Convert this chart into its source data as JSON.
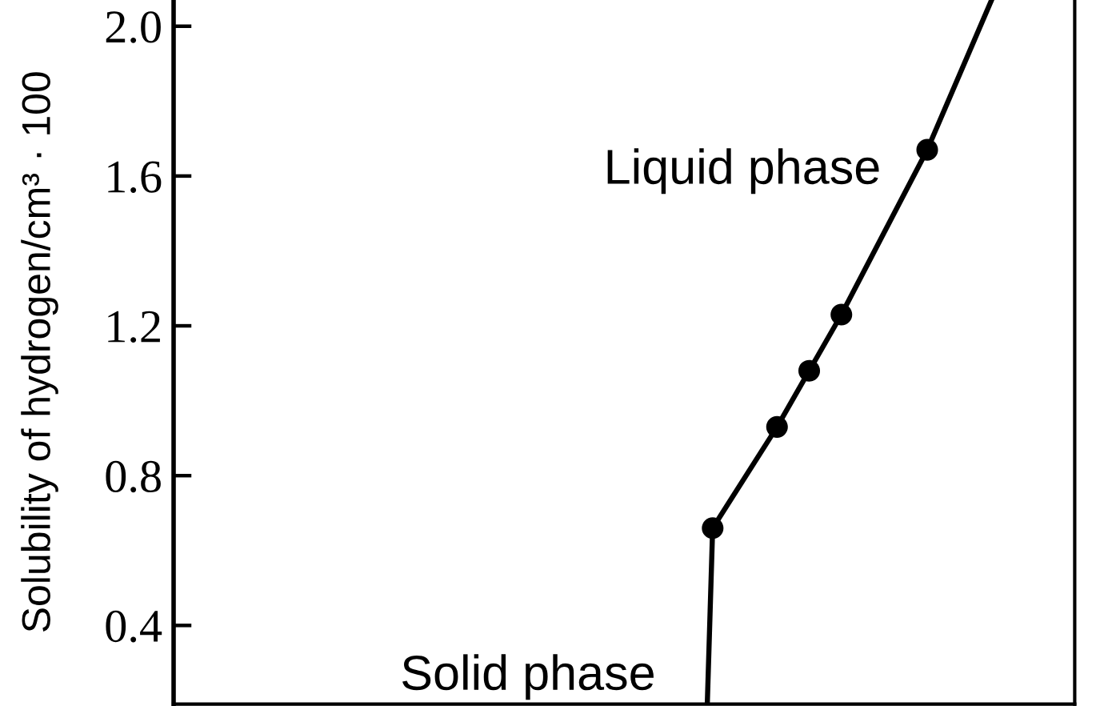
{
  "chart_data": {
    "type": "line",
    "ylabel": "Solubility of hydrogen/cm³ · 100",
    "annotations": [
      "Liquid phase",
      "Solid phase"
    ],
    "categories": [
      null,
      null,
      null,
      null,
      null,
      null,
      null,
      null,
      null,
      null,
      null,
      null,
      null,
      null,
      null,
      null,
      null,
      null,
      null,
      null,
      null,
      null,
      null,
      null,
      null,
      null,
      null,
      null,
      null,
      null,
      null,
      null,
      null,
      null,
      null,
      null,
      null,
      null,
      null,
      null,
      null,
      null,
      null,
      null,
      null,
      null,
      null,
      null,
      null,
      null,
      null,
      null,
      null,
      null,
      null,
      null,
      null,
      null,
      null,
      null,
      null,
      null,
      null,
      null,
      null,
      null,
      null,
      null,
      null,
      null,
      null,
      null,
      null,
      null,
      null,
      null,
      null,
      null,
      null,
      null,
      null,
      null,
      null,
      null,
      null,
      null,
      null,
      null,
      null,
      null,
      null,
      null,
      null,
      null,
      null,
      null,
      null,
      null,
      null,
      null,
      null,
      null,
      null,
      null,
      null,
      null,
      null,
      null,
      null,
      null,
      null,
      null,
      null,
      null,
      null,
      null,
      null,
      null,
      null,
      null,
      null,
      null,
      null,
      null,
      null,
      null,
      null,
      null,
      null,
      null,
      null,
      null,
      null,
      null,
      null,
      null,
      null,
      null,
      null,
      null,
      null,
      null,
      null,
      null,
      null,
      null,
      null,
      null,
      null,
      null,
      null,
      null,
      null,
      null,
      null,
      null,
      null,
      null,
      null,
      null,
      null,
      null,
      null,
      null,
      null,
      null,
      null,
      null
    ],
    "ylim": [
      0.19,
      2.07
    ],
    "yticks": [
      0.4,
      0.8,
      1.2,
      1.6,
      {
        "value": 2,
        "label": "2.0"
      }
    ],
    "tick_labels": "y",
    "series": [
      {
        "color": "#000000",
        "marker": "none",
        "values": [
          null,
          null,
          null,
          null,
          null,
          null,
          null,
          null,
          null,
          null,
          null,
          null,
          null,
          null,
          null,
          null,
          null,
          null,
          null,
          null,
          null,
          null,
          null,
          null,
          null,
          null,
          null,
          null,
          null,
          null,
          null,
          null,
          null,
          null,
          null,
          null,
          null,
          null,
          null,
          null,
          null,
          null,
          null,
          null,
          null,
          null,
          null,
          null,
          null,
          null,
          null,
          null,
          null,
          null,
          null,
          null,
          null,
          null,
          null,
          null,
          null,
          null,
          null,
          null,
          null,
          null,
          null,
          null,
          null,
          null,
          null,
          null,
          null,
          null,
          null,
          null,
          null,
          null,
          null,
          null,
          null,
          null,
          null,
          null,
          null,
          null,
          null,
          null,
          null,
          null,
          null,
          null,
          null,
          null,
          null,
          null,
          null,
          null,
          null,
          0.19,
          0.66,
          null,
          null,
          null,
          null,
          null,
          null,
          null,
          null,
          null,
          null,
          null,
          0.93,
          null,
          null,
          null,
          null,
          null,
          1.08,
          null,
          null,
          null,
          null,
          null,
          1.23,
          null,
          null,
          null,
          null,
          null,
          null,
          null,
          null,
          null,
          null,
          null,
          null,
          null,
          null,
          null,
          1.67,
          null,
          null,
          null,
          null,
          null,
          null,
          null,
          null,
          null,
          null,
          null,
          2.07,
          null,
          null,
          null,
          null,
          null,
          null,
          null,
          null,
          null,
          null,
          null,
          null,
          null,
          null,
          null
        ]
      },
      {
        "type": "scatter",
        "color": "#000000",
        "marker": "circle",
        "values": [
          null,
          null,
          null,
          null,
          null,
          null,
          null,
          null,
          null,
          null,
          null,
          null,
          null,
          null,
          null,
          null,
          null,
          null,
          null,
          null,
          null,
          null,
          null,
          null,
          null,
          null,
          null,
          null,
          null,
          null,
          null,
          null,
          null,
          null,
          null,
          null,
          null,
          null,
          null,
          null,
          null,
          null,
          null,
          null,
          null,
          null,
          null,
          null,
          null,
          null,
          null,
          null,
          null,
          null,
          null,
          null,
          null,
          null,
          null,
          null,
          null,
          null,
          null,
          null,
          null,
          null,
          null,
          null,
          null,
          null,
          null,
          null,
          null,
          null,
          null,
          null,
          null,
          null,
          null,
          null,
          null,
          null,
          null,
          null,
          null,
          null,
          null,
          null,
          null,
          null,
          null,
          null,
          null,
          null,
          null,
          null,
          null,
          null,
          null,
          null,
          0.66,
          null,
          null,
          null,
          null,
          null,
          null,
          null,
          null,
          null,
          null,
          null,
          0.93,
          null,
          null,
          null,
          null,
          null,
          1.08,
          null,
          null,
          null,
          null,
          null,
          1.23,
          null,
          null,
          null,
          null,
          null,
          null,
          null,
          null,
          null,
          null,
          null,
          null,
          null,
          null,
          null,
          1.67,
          null,
          null,
          null,
          null,
          null,
          null,
          null,
          null,
          null,
          null,
          null,
          null,
          null,
          null,
          null,
          null,
          null,
          null,
          null,
          null,
          null,
          null,
          null,
          null,
          null,
          null,
          null
        ]
      }
    ]
  }
}
